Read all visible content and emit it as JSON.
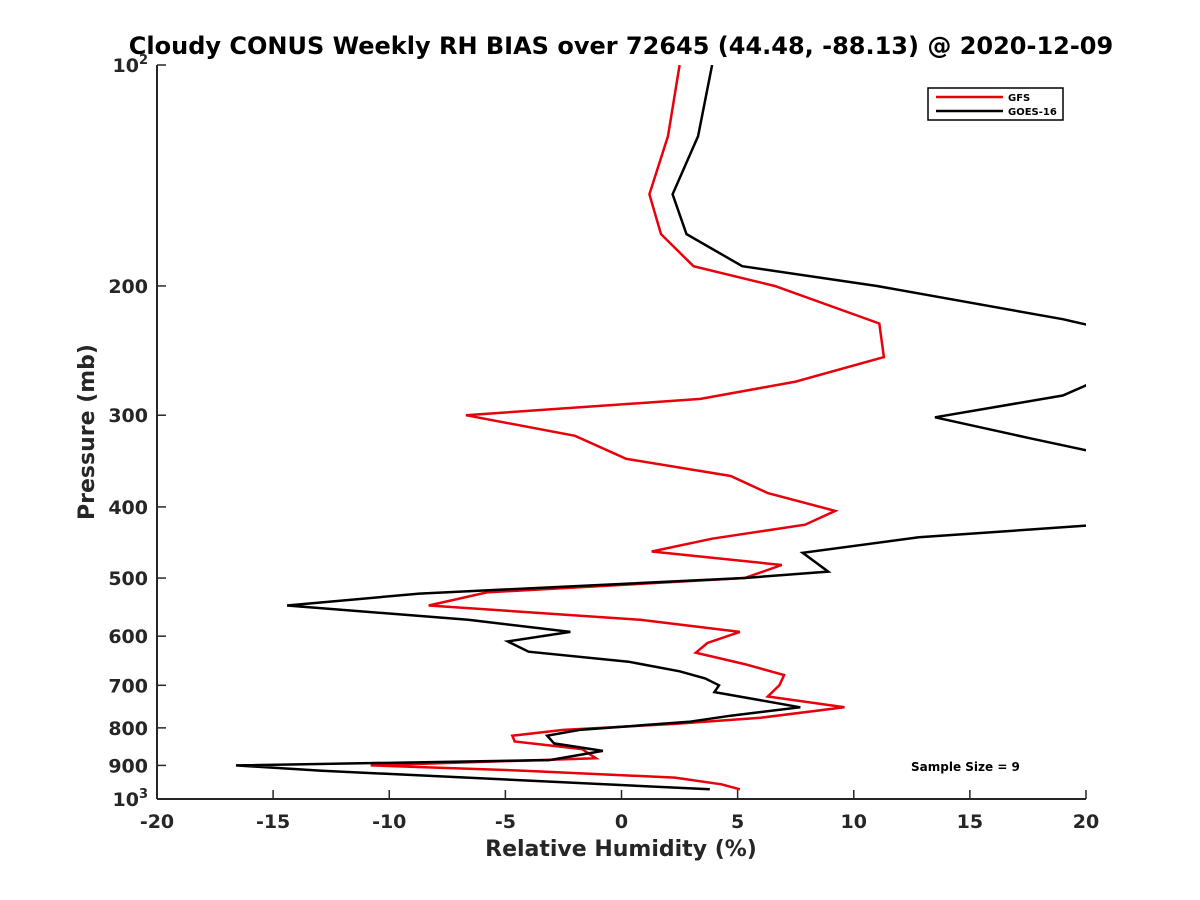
{
  "chart_data": {
    "type": "line",
    "title": "Cloudy CONUS Weekly RH BIAS over 72645 (44.48, -88.13) @ 2020-12-09",
    "xlabel": "Relative Humidity (%)",
    "ylabel": "Pressure (mb)",
    "xlim": [
      -20,
      20
    ],
    "ylim": [
      100,
      1000
    ],
    "y_scale": "log",
    "y_reversed": true,
    "x_ticks": [
      "-20",
      "-15",
      "-10",
      "-5",
      "0",
      "5",
      "10",
      "15",
      "20"
    ],
    "y_ticks": [
      {
        "value": 100,
        "base": "10",
        "exp": "2"
      },
      {
        "value": 200,
        "label": "200"
      },
      {
        "value": 300,
        "label": "300"
      },
      {
        "value": 400,
        "label": "400"
      },
      {
        "value": 500,
        "label": "500"
      },
      {
        "value": 600,
        "label": "600"
      },
      {
        "value": 700,
        "label": "700"
      },
      {
        "value": 800,
        "label": "800"
      },
      {
        "value": 900,
        "label": "900"
      },
      {
        "value": 1000,
        "base": "10",
        "exp": "3"
      }
    ],
    "grid": false,
    "legend_position": "top-right",
    "annotation": "Sample Size = 9",
    "series": [
      {
        "name": "GFS",
        "color": "#e8000b",
        "points": [
          [
            2.5,
            100
          ],
          [
            2.0,
            125
          ],
          [
            1.2,
            150
          ],
          [
            1.7,
            170
          ],
          [
            3.1,
            188
          ],
          [
            6.6,
            200
          ],
          [
            11.1,
            225
          ],
          [
            11.3,
            250
          ],
          [
            7.5,
            270
          ],
          [
            3.4,
            285
          ],
          [
            -6.7,
            300
          ],
          [
            -2.0,
            320
          ],
          [
            0.2,
            344
          ],
          [
            4.7,
            363
          ],
          [
            6.3,
            383
          ],
          [
            9.2,
            405
          ],
          [
            7.9,
            423
          ],
          [
            3.9,
            442
          ],
          [
            1.3,
            460
          ],
          [
            6.9,
            480
          ],
          [
            5.3,
            500
          ],
          [
            -5.8,
            523
          ],
          [
            -8.3,
            545
          ],
          [
            0.8,
            570
          ],
          [
            5.1,
            592
          ],
          [
            3.7,
            613
          ],
          [
            3.2,
            632
          ],
          [
            5.3,
            655
          ],
          [
            7.0,
            678
          ],
          [
            6.8,
            700
          ],
          [
            6.3,
            725
          ],
          [
            9.6,
            750
          ],
          [
            6.0,
            775
          ],
          [
            2.3,
            790
          ],
          [
            -2.5,
            805
          ],
          [
            -4.7,
            820
          ],
          [
            -4.6,
            835
          ],
          [
            -1.7,
            855
          ],
          [
            -1.1,
            880
          ],
          [
            -10.8,
            900
          ],
          [
            -4.2,
            915
          ],
          [
            2.3,
            935
          ],
          [
            4.3,
            955
          ],
          [
            5.1,
            970
          ]
        ]
      },
      {
        "name": "GOES-16",
        "color": "#000000",
        "points": [
          [
            3.9,
            100
          ],
          [
            3.3,
            125
          ],
          [
            2.2,
            150
          ],
          [
            2.8,
            170
          ],
          [
            5.2,
            188
          ],
          [
            11.0,
            200
          ],
          [
            19.0,
            222
          ],
          [
            20.6,
            228
          ],
          [
            20.6,
            268
          ],
          [
            19.0,
            282
          ],
          [
            13.5,
            302
          ],
          [
            17.5,
            322
          ],
          [
            20.6,
            338
          ],
          [
            20.6,
            423
          ],
          [
            12.8,
            440
          ],
          [
            7.8,
            462
          ],
          [
            8.9,
            490
          ],
          [
            5.3,
            500
          ],
          [
            -8.7,
            525
          ],
          [
            -14.4,
            545
          ],
          [
            -6.6,
            570
          ],
          [
            -2.2,
            592
          ],
          [
            -4.9,
            610
          ],
          [
            -4.0,
            630
          ],
          [
            0.3,
            650
          ],
          [
            2.5,
            670
          ],
          [
            3.6,
            685
          ],
          [
            4.2,
            700
          ],
          [
            4.0,
            715
          ],
          [
            7.7,
            750
          ],
          [
            4.7,
            770
          ],
          [
            2.9,
            785
          ],
          [
            -1.8,
            805
          ],
          [
            -3.2,
            820
          ],
          [
            -2.9,
            840
          ],
          [
            -0.8,
            860
          ],
          [
            -3.1,
            885
          ],
          [
            -16.6,
            900
          ],
          [
            -12.9,
            915
          ],
          [
            3.8,
            970
          ]
        ]
      }
    ]
  }
}
